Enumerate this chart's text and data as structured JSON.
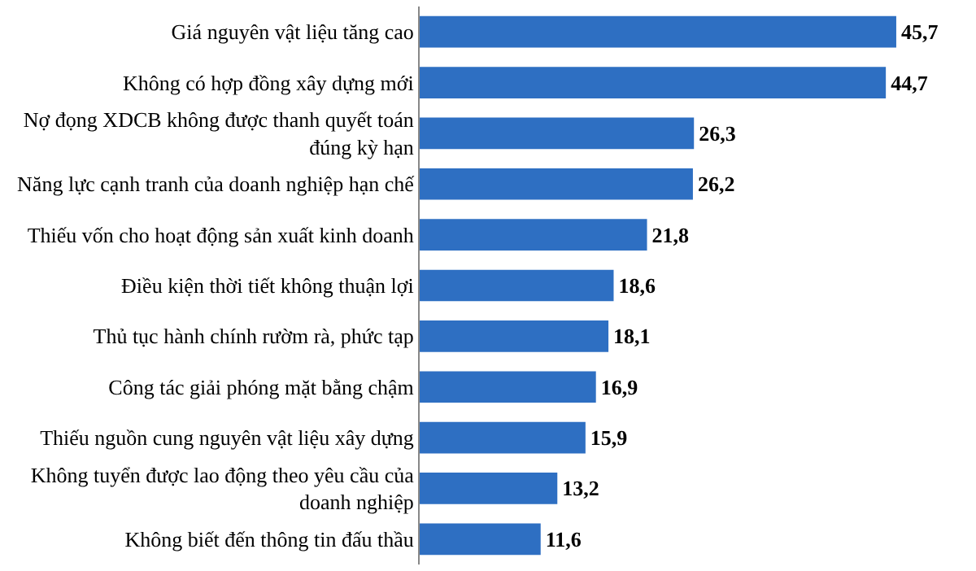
{
  "chart_data": {
    "type": "bar",
    "orientation": "horizontal",
    "color": "#2e6fc2",
    "categories": [
      "Giá nguyên vật liệu tăng cao",
      "Không có hợp đồng xây dựng mới",
      "Nợ đọng XDCB không được thanh quyết toán đúng kỳ hạn",
      "Năng lực cạnh tranh của doanh nghiệp hạn chế",
      "Thiếu vốn cho hoạt động sản xuất kinh doanh",
      "Điều kiện thời tiết không thuận lợi",
      "Thủ tục hành chính rườm rà, phức tạp",
      "Công tác giải phóng mặt bằng chậm",
      "Thiếu nguồn cung nguyên vật liệu xây dựng",
      "Không tuyển được lao động theo yêu cầu của doanh nghiệp",
      "Không biết đến thông tin đấu thầu"
    ],
    "values": [
      45.7,
      44.7,
      26.3,
      26.2,
      21.8,
      18.6,
      18.1,
      16.9,
      15.9,
      13.2,
      11.6
    ],
    "value_labels": [
      "45,7",
      "44,7",
      "26,3",
      "26,2",
      "21,8",
      "18,6",
      "18,1",
      "16,9",
      "15,9",
      "13,2",
      "11,6"
    ]
  }
}
